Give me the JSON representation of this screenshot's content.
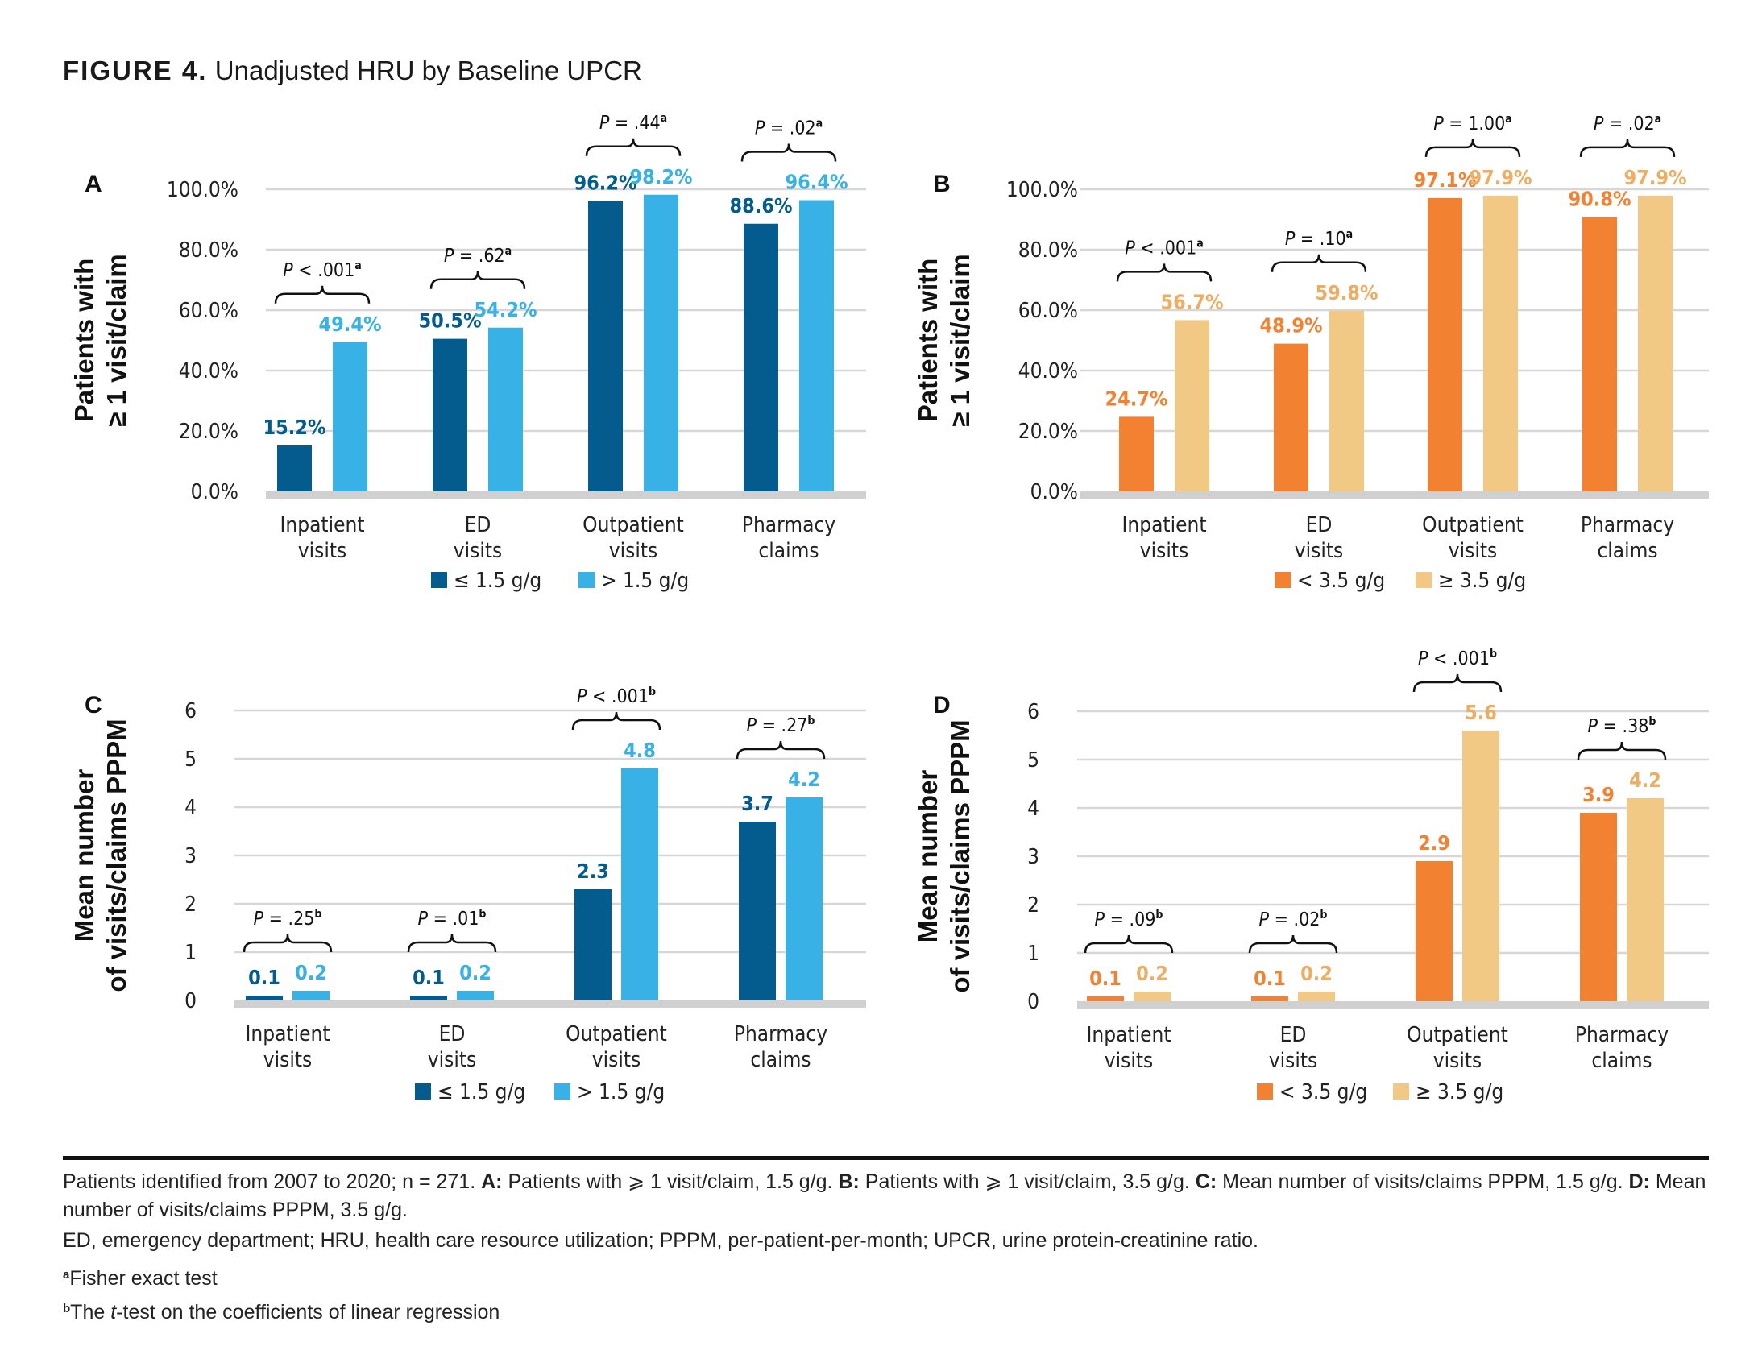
{
  "figure": {
    "label": "FIGURE 4.",
    "title": "Unadjusted HRU by Baseline UPCR"
  },
  "chart_data": [
    {
      "panel": "A",
      "type": "bar",
      "ylabel": [
        "Patients with",
        "≥ 1 visit/claim"
      ],
      "categories": [
        [
          "Inpatient",
          "visits"
        ],
        [
          "ED",
          "visits"
        ],
        [
          "Outpatient",
          "visits"
        ],
        [
          "Pharmacy",
          "claims"
        ]
      ],
      "ylim": [
        0,
        100
      ],
      "yticks": [
        0,
        20,
        40,
        60,
        80,
        100
      ],
      "ytick_labels": [
        "0.0%",
        "20.0%",
        "40.0%",
        "60.0%",
        "80.0%",
        "100.0%"
      ],
      "grid": true,
      "legend_position": "bottom-center",
      "series": [
        {
          "name": "≤ 1.5 g/g",
          "color": "#035B8E",
          "values": [
            15.2,
            50.5,
            96.2,
            88.6
          ],
          "labels": [
            "15.2%",
            "50.5%",
            "96.2%",
            "88.6%"
          ]
        },
        {
          "name": "> 1.5 g/g",
          "color": "#38B1E6",
          "values": [
            49.4,
            54.2,
            98.2,
            96.4
          ],
          "labels": [
            "49.4%",
            "54.2%",
            "98.2%",
            "96.4%"
          ]
        }
      ],
      "pvalues": [
        {
          "op": "<",
          "value": ".001",
          "sup": "a"
        },
        {
          "op": "=",
          "value": ".62",
          "sup": "a"
        },
        {
          "op": "=",
          "value": ".44",
          "sup": "a"
        },
        {
          "op": "=",
          "value": ".02",
          "sup": "a"
        }
      ]
    },
    {
      "panel": "B",
      "type": "bar",
      "ylabel": [
        "Patients with",
        "≥ 1 visit/claim"
      ],
      "categories": [
        [
          "Inpatient",
          "visits"
        ],
        [
          "ED",
          "visits"
        ],
        [
          "Outpatient",
          "visits"
        ],
        [
          "Pharmacy",
          "claims"
        ]
      ],
      "ylim": [
        0,
        100
      ],
      "yticks": [
        0,
        20,
        40,
        60,
        80,
        100
      ],
      "ytick_labels": [
        "0.0%",
        "20.0%",
        "40.0%",
        "60.0%",
        "80.0%",
        "100.0%"
      ],
      "grid": true,
      "legend_position": "bottom-center",
      "series": [
        {
          "name": "< 3.5 g/g",
          "color": "#F28131",
          "values": [
            24.7,
            48.9,
            97.1,
            90.8
          ],
          "labels": [
            "24.7%",
            "48.9%",
            "97.1%",
            "90.8%"
          ]
        },
        {
          "name": "≥ 3.5 g/g",
          "color": "#F1C985",
          "values": [
            56.7,
            59.8,
            97.9,
            97.9
          ],
          "labels": [
            "56.7%",
            "59.8%",
            "97.9%",
            "97.9%"
          ]
        }
      ],
      "pvalues": [
        {
          "op": "<",
          "value": ".001",
          "sup": "a"
        },
        {
          "op": "=",
          "value": ".10",
          "sup": "a"
        },
        {
          "op": "=",
          "value": "1.00",
          "sup": "a"
        },
        {
          "op": "=",
          "value": ".02",
          "sup": "a"
        }
      ]
    },
    {
      "panel": "C",
      "type": "bar",
      "ylabel": [
        "Mean number",
        "of visits/claims PPPM"
      ],
      "categories": [
        [
          "Inpatient",
          "visits"
        ],
        [
          "ED",
          "visits"
        ],
        [
          "Outpatient",
          "visits"
        ],
        [
          "Pharmacy",
          "claims"
        ]
      ],
      "ylim": [
        0,
        6
      ],
      "yticks": [
        0,
        1,
        2,
        3,
        4,
        5,
        6
      ],
      "ytick_labels": [
        "0",
        "1",
        "2",
        "3",
        "4",
        "5",
        "6"
      ],
      "grid": true,
      "legend_position": "bottom-center",
      "series": [
        {
          "name": "≤ 1.5 g/g",
          "color": "#035B8E",
          "values": [
            0.1,
            0.1,
            2.3,
            3.7
          ],
          "labels": [
            "0.1",
            "0.1",
            "2.3",
            "3.7"
          ]
        },
        {
          "name": "> 1.5 g/g",
          "color": "#38B1E6",
          "values": [
            0.2,
            0.2,
            4.8,
            4.2
          ],
          "labels": [
            "0.2",
            "0.2",
            "4.8",
            "4.2"
          ]
        }
      ],
      "pvalues": [
        {
          "op": "=",
          "value": ".25",
          "sup": "b"
        },
        {
          "op": "=",
          "value": ".01",
          "sup": "b"
        },
        {
          "op": "<",
          "value": ".001",
          "sup": "b"
        },
        {
          "op": "=",
          "value": ".27",
          "sup": "b"
        }
      ]
    },
    {
      "panel": "D",
      "type": "bar",
      "ylabel": [
        "Mean number",
        "of visits/claims PPPM"
      ],
      "categories": [
        [
          "Inpatient",
          "visits"
        ],
        [
          "ED",
          "visits"
        ],
        [
          "Outpatient",
          "visits"
        ],
        [
          "Pharmacy",
          "claims"
        ]
      ],
      "ylim": [
        0,
        6
      ],
      "yticks": [
        0,
        1,
        2,
        3,
        4,
        5,
        6
      ],
      "ytick_labels": [
        "0",
        "1",
        "2",
        "3",
        "4",
        "5",
        "6"
      ],
      "grid": true,
      "legend_position": "bottom-center",
      "series": [
        {
          "name": "< 3.5 g/g",
          "color": "#F28131",
          "values": [
            0.1,
            0.1,
            2.9,
            3.9
          ],
          "labels": [
            "0.1",
            "0.1",
            "2.9",
            "3.9"
          ]
        },
        {
          "name": "≥ 3.5 g/g",
          "color": "#F1C985",
          "values": [
            0.2,
            0.2,
            5.6,
            4.2
          ],
          "labels": [
            "0.2",
            "0.2",
            "5.6",
            "4.2"
          ]
        }
      ],
      "pvalues": [
        {
          "op": "=",
          "value": ".09",
          "sup": "b"
        },
        {
          "op": "=",
          "value": ".02",
          "sup": "b"
        },
        {
          "op": "<",
          "value": ".001",
          "sup": "b"
        },
        {
          "op": "=",
          "value": ".38",
          "sup": "b"
        }
      ]
    }
  ],
  "footnotes": {
    "line1_pre": "Patients identified from 2007 to 2020; n = 271. ",
    "a_label": "A:",
    "a_text": " Patients with ⩾ 1 visit/claim, 1.5 g/g. ",
    "b_label": "B:",
    "b_text": " Patients with ⩾ 1 visit/claim, 3.5 g/g. ",
    "c_label": "C:",
    "c_text": " Mean number of visits/claims PPPM, 1.5 g/g. ",
    "d_label": "D:",
    "d_text": " Mean number of visits/claims PPPM, 3.5 g/g.",
    "abbrev": "ED, emergency department; HRU, health care resource utilization; PPPM, per-patient-per-month; UPCR, urine protein-creatinine ratio.",
    "note_a_sup": "a",
    "note_a": "Fisher exact test",
    "note_b_sup": "b",
    "note_b_pre": "The ",
    "note_b_italic": "t",
    "note_b_post": "-test on the coefficients of linear regression"
  }
}
